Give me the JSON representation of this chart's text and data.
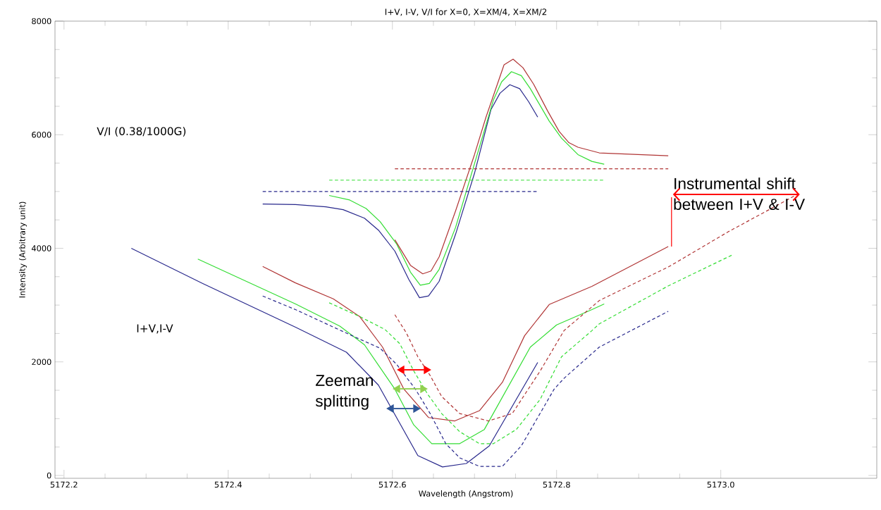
{
  "chart_data": {
    "type": "line",
    "title": "I+V, I-V, V/I for X=0, X=XM/4, X=XM/2",
    "xlabel": "Wavelength (Angstrom)",
    "ylabel": "Intensity (Arbitrary unit)",
    "annotations": [
      "V/I (0.38/1000G)",
      "I+V,I-V",
      "Zeeman splitting",
      {
        "text": "Instrumental shift between I+V & I-V",
        "x": 5172.94,
        "y": 4030
      }
    ],
    "xlim": [
      5172.189,
      5173.19
    ],
    "ylim": [
      -50,
      8000
    ],
    "xticks": [
      5172.2,
      5172.4,
      5172.6,
      5172.8,
      {
        "value": 5173,
        "label": "5173.0"
      }
    ],
    "yticks": [
      0,
      2000,
      4000,
      6000,
      8000
    ],
    "series": [
      {
        "color": "#28288c",
        "line_style": "solid",
        "x": [
          5172.282,
          5172.369,
          5172.482,
          5172.544,
          5172.583,
          5172.631,
          5172.661,
          5172.69,
          5172.718,
          5172.777
        ],
        "values": [
          4000,
          3380,
          2610,
          2170,
          1590,
          350,
          150,
          210,
          520,
          1990
        ]
      },
      {
        "color": "#33dd33",
        "line_style": "solid",
        "x": [
          5172.363,
          5172.482,
          5172.536,
          5172.566,
          5172.603,
          5172.626,
          5172.648,
          5172.682,
          5172.712,
          5172.768,
          5172.8,
          5172.843,
          5172.858
        ],
        "values": [
          3810,
          3020,
          2630,
          2300,
          1520,
          890,
          560,
          560,
          810,
          2260,
          2650,
          2920,
          3020
        ]
      },
      {
        "color": "#b03434",
        "line_style": "solid",
        "x": [
          5172.442,
          5172.482,
          5172.528,
          5172.56,
          5172.588,
          5172.614,
          5172.644,
          5172.676,
          5172.706,
          5172.734,
          5172.761,
          5172.791,
          5172.843,
          5172.936
        ],
        "values": [
          3680,
          3390,
          3110,
          2800,
          2260,
          1520,
          1020,
          960,
          1140,
          1640,
          2460,
          3010,
          3330,
          4030
        ]
      },
      {
        "color": "#28288c",
        "line_style": "dashed",
        "x": [
          5172.442,
          5172.482,
          5172.551,
          5172.585,
          5172.605,
          5172.628,
          5172.646,
          5172.665,
          5172.682,
          5172.706,
          5172.734,
          5172.757,
          5172.797,
          5172.809,
          5172.852,
          5172.936
        ],
        "values": [
          3160,
          2920,
          2460,
          2240,
          1960,
          1520,
          1090,
          560,
          310,
          160,
          160,
          520,
          1520,
          1710,
          2260,
          2890
        ]
      },
      {
        "color": "#33dd33",
        "line_style": "dashed",
        "x": [
          5172.523,
          5172.56,
          5172.591,
          5172.609,
          5172.626,
          5172.643,
          5172.66,
          5172.682,
          5172.706,
          5172.723,
          5172.751,
          5172.78,
          5172.806,
          5172.843,
          5172.852,
          5172.935,
          5173.015
        ],
        "values": [
          3040,
          2800,
          2570,
          2320,
          1840,
          1430,
          1090,
          770,
          560,
          560,
          810,
          1340,
          2090,
          2550,
          2670,
          3330,
          3890
        ]
      },
      {
        "color": "#b03434",
        "line_style": "dashed",
        "x": [
          5172.603,
          5172.617,
          5172.631,
          5172.646,
          5172.66,
          5172.682,
          5172.717,
          5172.746,
          5172.78,
          5172.809,
          5172.852,
          5172.936,
          5173.009,
          5173.092
        ],
        "values": [
          2830,
          2510,
          2090,
          1760,
          1390,
          1090,
          960,
          1090,
          1840,
          2550,
          3080,
          3670,
          4290,
          4940
        ]
      },
      {
        "color": "#28288c",
        "line_style": "solid",
        "x": [
          5172.442,
          5172.482,
          5172.519,
          5172.54,
          5172.566,
          5172.583,
          5172.603,
          5172.62,
          5172.633,
          5172.644,
          5172.657,
          5172.677,
          5172.7,
          5172.72,
          5172.731,
          5172.743,
          5172.755,
          5172.766,
          5172.777
        ],
        "values": [
          4780,
          4770,
          4730,
          4680,
          4530,
          4320,
          3950,
          3450,
          3130,
          3160,
          3420,
          4250,
          5320,
          6440,
          6730,
          6880,
          6810,
          6580,
          6310
        ]
      },
      {
        "color": "#33dd33",
        "line_style": "solid",
        "x": [
          5172.523,
          5172.548,
          5172.568,
          5172.585,
          5172.605,
          5172.622,
          5172.634,
          5172.645,
          5172.657,
          5172.677,
          5172.7,
          5172.723,
          5172.733,
          5172.745,
          5172.757,
          5172.768,
          5172.791,
          5172.806,
          5172.826,
          5172.843,
          5172.858
        ],
        "values": [
          4930,
          4850,
          4700,
          4470,
          4080,
          3580,
          3350,
          3380,
          3630,
          4370,
          5490,
          6610,
          6930,
          7110,
          7040,
          6810,
          6240,
          5940,
          5650,
          5530,
          5480
        ]
      },
      {
        "color": "#b03434",
        "line_style": "solid",
        "x": [
          5172.603,
          5172.622,
          5172.637,
          5172.647,
          5172.657,
          5172.677,
          5172.7,
          5172.714,
          5172.736,
          5172.747,
          5172.759,
          5172.772,
          5172.789,
          5172.803,
          5172.815,
          5172.826,
          5172.852,
          5172.936
        ],
        "values": [
          4150,
          3700,
          3550,
          3600,
          3850,
          4660,
          5650,
          6310,
          7230,
          7330,
          7180,
          6890,
          6420,
          6060,
          5860,
          5780,
          5680,
          5630
        ]
      },
      {
        "color": "#28288c",
        "line_style": "dashed",
        "x": [
          5172.442,
          5172.777
        ],
        "values": [
          5000,
          5000
        ]
      },
      {
        "color": "#33dd33",
        "line_style": "dashed",
        "x": [
          5172.523,
          5172.858
        ],
        "values": [
          5200,
          5200
        ]
      },
      {
        "color": "#b03434",
        "line_style": "dashed",
        "x": [
          5172.603,
          5172.936
        ],
        "values": [
          5400,
          5400
        ]
      }
    ]
  }
}
